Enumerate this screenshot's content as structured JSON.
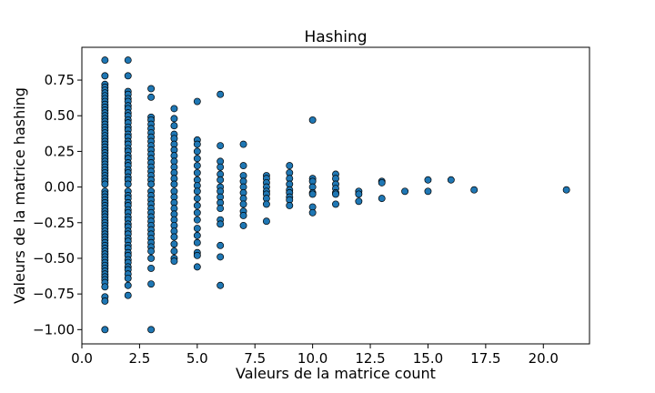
{
  "chart_data": {
    "type": "scatter",
    "title": "Hashing",
    "xlabel": "Valeurs de la matrice count",
    "ylabel": "Valeurs de la matrice hashing",
    "xlim": [
      0.0,
      22.0
    ],
    "ylim": [
      -1.1,
      0.98
    ],
    "xticks": [
      0.0,
      2.5,
      5.0,
      7.5,
      10.0,
      12.5,
      15.0,
      17.5,
      20.0
    ],
    "xtick_labels": [
      "0.0",
      "2.5",
      "5.0",
      "7.5",
      "10.0",
      "12.5",
      "15.0",
      "17.5",
      "20.0"
    ],
    "yticks": [
      -1.0,
      -0.75,
      -0.5,
      -0.25,
      0.0,
      0.25,
      0.5,
      0.75
    ],
    "ytick_labels": [
      "−1.00",
      "−0.75",
      "−0.50",
      "−0.25",
      "0.00",
      "0.25",
      "0.50",
      "0.75"
    ],
    "grid": false,
    "legend": "none",
    "marker_color": "#1f77b4",
    "marker_edge_color": "#000000",
    "columns": [
      {
        "x": 1,
        "y": [
          0.89,
          0.78,
          0.72,
          0.7,
          0.68,
          0.66,
          0.64,
          0.62,
          0.6,
          0.58,
          0.56,
          0.54,
          0.52,
          0.5,
          0.48,
          0.46,
          0.44,
          0.42,
          0.4,
          0.38,
          0.36,
          0.34,
          0.32,
          0.3,
          0.28,
          0.26,
          0.24,
          0.22,
          0.2,
          0.18,
          0.16,
          0.14,
          0.12,
          0.1,
          0.08,
          0.06,
          0.04,
          0.02,
          -0.03,
          -0.05,
          -0.07,
          -0.09,
          -0.11,
          -0.13,
          -0.15,
          -0.17,
          -0.19,
          -0.21,
          -0.23,
          -0.25,
          -0.27,
          -0.29,
          -0.31,
          -0.33,
          -0.35,
          -0.37,
          -0.39,
          -0.41,
          -0.43,
          -0.45,
          -0.47,
          -0.49,
          -0.51,
          -0.53,
          -0.55,
          -0.57,
          -0.59,
          -0.61,
          -0.63,
          -0.65,
          -0.67,
          -0.7,
          -0.77,
          -0.8,
          -1.0
        ]
      },
      {
        "x": 2,
        "y": [
          0.89,
          0.78,
          0.67,
          0.65,
          0.62,
          0.6,
          0.57,
          0.55,
          0.52,
          0.5,
          0.47,
          0.45,
          0.42,
          0.4,
          0.37,
          0.35,
          0.32,
          0.3,
          0.27,
          0.25,
          0.22,
          0.2,
          0.17,
          0.15,
          0.12,
          0.1,
          0.07,
          0.05,
          0.02,
          -0.03,
          -0.06,
          -0.08,
          -0.11,
          -0.13,
          -0.16,
          -0.18,
          -0.21,
          -0.23,
          -0.26,
          -0.28,
          -0.31,
          -0.33,
          -0.36,
          -0.38,
          -0.41,
          -0.43,
          -0.46,
          -0.48,
          -0.51,
          -0.53,
          -0.56,
          -0.58,
          -0.61,
          -0.64,
          -0.69,
          -0.76
        ]
      },
      {
        "x": 3,
        "y": [
          0.69,
          0.63,
          0.49,
          0.47,
          0.44,
          0.41,
          0.38,
          0.35,
          0.32,
          0.29,
          0.26,
          0.23,
          0.2,
          0.17,
          0.14,
          0.11,
          0.08,
          0.05,
          0.02,
          -0.03,
          -0.06,
          -0.09,
          -0.12,
          -0.15,
          -0.18,
          -0.21,
          -0.24,
          -0.27,
          -0.3,
          -0.33,
          -0.36,
          -0.39,
          -0.42,
          -0.45,
          -0.5,
          -0.57,
          -0.68,
          -1.0
        ]
      },
      {
        "x": 4,
        "y": [
          0.55,
          0.48,
          0.43,
          0.37,
          0.34,
          0.3,
          0.26,
          0.22,
          0.18,
          0.14,
          0.1,
          0.06,
          0.02,
          -0.03,
          -0.07,
          -0.11,
          -0.15,
          -0.19,
          -0.23,
          -0.27,
          -0.31,
          -0.35,
          -0.4,
          -0.45,
          -0.5,
          -0.52
        ]
      },
      {
        "x": 5,
        "y": [
          0.6,
          0.33,
          0.3,
          0.25,
          0.2,
          0.15,
          0.1,
          0.05,
          0.01,
          -0.03,
          -0.08,
          -0.13,
          -0.18,
          -0.23,
          -0.29,
          -0.34,
          -0.39,
          -0.46,
          -0.48,
          -0.56
        ]
      },
      {
        "x": 6,
        "y": [
          0.65,
          0.29,
          0.18,
          0.14,
          0.09,
          0.05,
          0.0,
          -0.03,
          -0.07,
          -0.11,
          -0.15,
          -0.23,
          -0.26,
          -0.41,
          -0.49,
          -0.69
        ]
      },
      {
        "x": 7,
        "y": [
          0.3,
          0.15,
          0.08,
          0.04,
          0.0,
          -0.04,
          -0.08,
          -0.12,
          -0.17,
          -0.2,
          -0.27
        ]
      },
      {
        "x": 8,
        "y": [
          0.08,
          0.06,
          0.03,
          0.0,
          -0.03,
          -0.05,
          -0.08,
          -0.12,
          -0.24
        ]
      },
      {
        "x": 9,
        "y": [
          0.15,
          0.1,
          0.06,
          0.02,
          -0.02,
          -0.04,
          -0.07,
          -0.09,
          -0.13
        ]
      },
      {
        "x": 10,
        "y": [
          0.47,
          0.06,
          0.04,
          0.0,
          -0.04,
          -0.05,
          -0.14,
          -0.18
        ]
      },
      {
        "x": 11,
        "y": [
          0.09,
          0.06,
          0.02,
          -0.01,
          -0.04,
          -0.05,
          -0.12
        ]
      },
      {
        "x": 12,
        "y": [
          -0.03,
          -0.05,
          -0.1
        ]
      },
      {
        "x": 13,
        "y": [
          0.04,
          0.03,
          -0.08
        ]
      },
      {
        "x": 14,
        "y": [
          -0.03
        ]
      },
      {
        "x": 15,
        "y": [
          0.05,
          -0.03
        ]
      },
      {
        "x": 16,
        "y": [
          0.05
        ]
      },
      {
        "x": 17,
        "y": [
          -0.02
        ]
      },
      {
        "x": 21,
        "y": [
          -0.02
        ]
      }
    ]
  }
}
